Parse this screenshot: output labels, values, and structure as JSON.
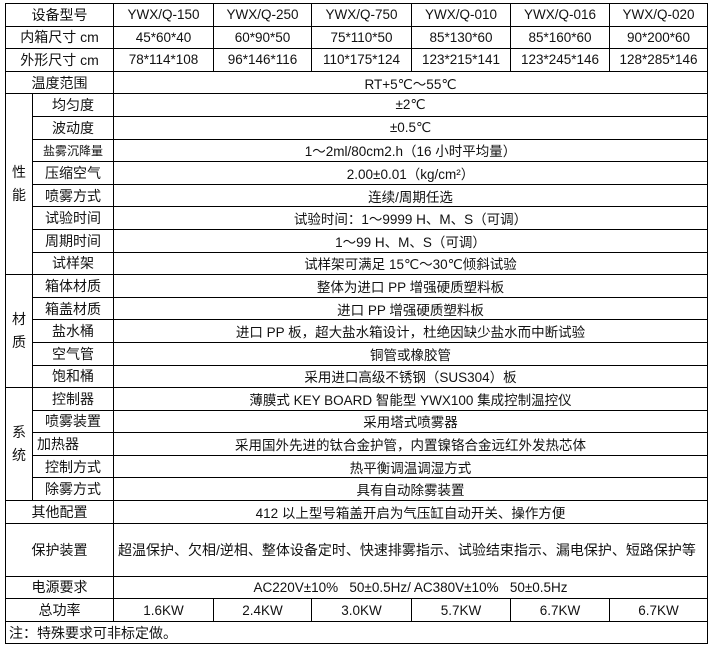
{
  "header": {
    "label": "设备型号",
    "models": [
      "YWX/Q-150",
      "YWX/Q-250",
      "YWX/Q-750",
      "YWX/Q-010",
      "YWX/Q-016",
      "YWX/Q-020"
    ]
  },
  "inner_size": {
    "label": "内箱尺寸 cm",
    "values": [
      "45*60*40",
      "60*90*50",
      "75*110*50",
      "85*130*60",
      "85*160*60",
      "90*200*60"
    ]
  },
  "outer_size": {
    "label": "外形尺寸 cm",
    "values": [
      "78*114*108",
      "96*146*116",
      "110*175*124",
      "123*215*141",
      "123*245*146",
      "128*285*146"
    ]
  },
  "temperature_range": {
    "label": "温度范围",
    "value": "RT+5℃～55℃"
  },
  "performance": {
    "group_label": "性能",
    "rows": [
      {
        "label": "均匀度",
        "value": "±2℃"
      },
      {
        "label": "波动度",
        "value": "±0.5℃"
      },
      {
        "label": "盐雾沉降量",
        "value": "1～2ml/80cm2.h（16 小时平均量）"
      },
      {
        "label": "压缩空气",
        "value": "2.00±0.01（kg/cm²）"
      },
      {
        "label": "喷雾方式",
        "value": "连续/周期任选"
      },
      {
        "label": "试验时间",
        "value": "试验时间：1～9999 H、M、S（可调）"
      },
      {
        "label": "周期时间",
        "value": "1～99 H、M、S（可调）"
      },
      {
        "label": "试样架",
        "value": "试样架可满足 15℃～30℃倾斜试验"
      }
    ]
  },
  "material": {
    "group_label": "材质",
    "rows": [
      {
        "label": "箱体材质",
        "value": "整体为进口 PP 增强硬质塑料板"
      },
      {
        "label": "箱盖材质",
        "value": "进口 PP 增强硬质塑料板"
      },
      {
        "label": "盐水桶",
        "value": "进口 PP 板，超大盐水箱设计，杜绝因缺少盐水而中断试验"
      },
      {
        "label": "空气管",
        "value": "铜管或橡胶管"
      },
      {
        "label": "饱和桶",
        "value": "采用进口高级不锈钢（SUS304）板"
      }
    ]
  },
  "system": {
    "group_label": "系统",
    "rows": [
      {
        "label": "控制器",
        "value": "薄膜式  KEY BOARD 智能型 YWX100 集成控制温控仪"
      },
      {
        "label": "喷雾装置",
        "value": "采用塔式喷雾器"
      },
      {
        "label": "加热器",
        "value": "采用国外先进的钛合金护管，内置镍铬合金远红外发热芯体"
      },
      {
        "label": "控制方式",
        "value": "热平衡调温调湿方式"
      },
      {
        "label": "除雾方式",
        "value": "具有自动除雾装置"
      }
    ]
  },
  "other_config": {
    "label": "其他配置",
    "value": "412 以上型号箱盖开启为气压缸自动开关、操作方便"
  },
  "protection": {
    "label": "保护装置",
    "value": "超温保护、欠相/逆相、整体设备定时、快速排雾指示、试验结束指示、漏电保护、短路保护等"
  },
  "power_supply": {
    "label": "电源要求",
    "value": "AC220V±10%   50±0.5Hz/ AC380V±10%   50±0.5Hz"
  },
  "total_power": {
    "label": "总功率",
    "values": [
      "1.6KW",
      "2.4KW",
      "3.0KW",
      "5.7KW",
      "6.7KW",
      "6.7KW"
    ]
  },
  "note": "注：特殊要求可非标定做。"
}
